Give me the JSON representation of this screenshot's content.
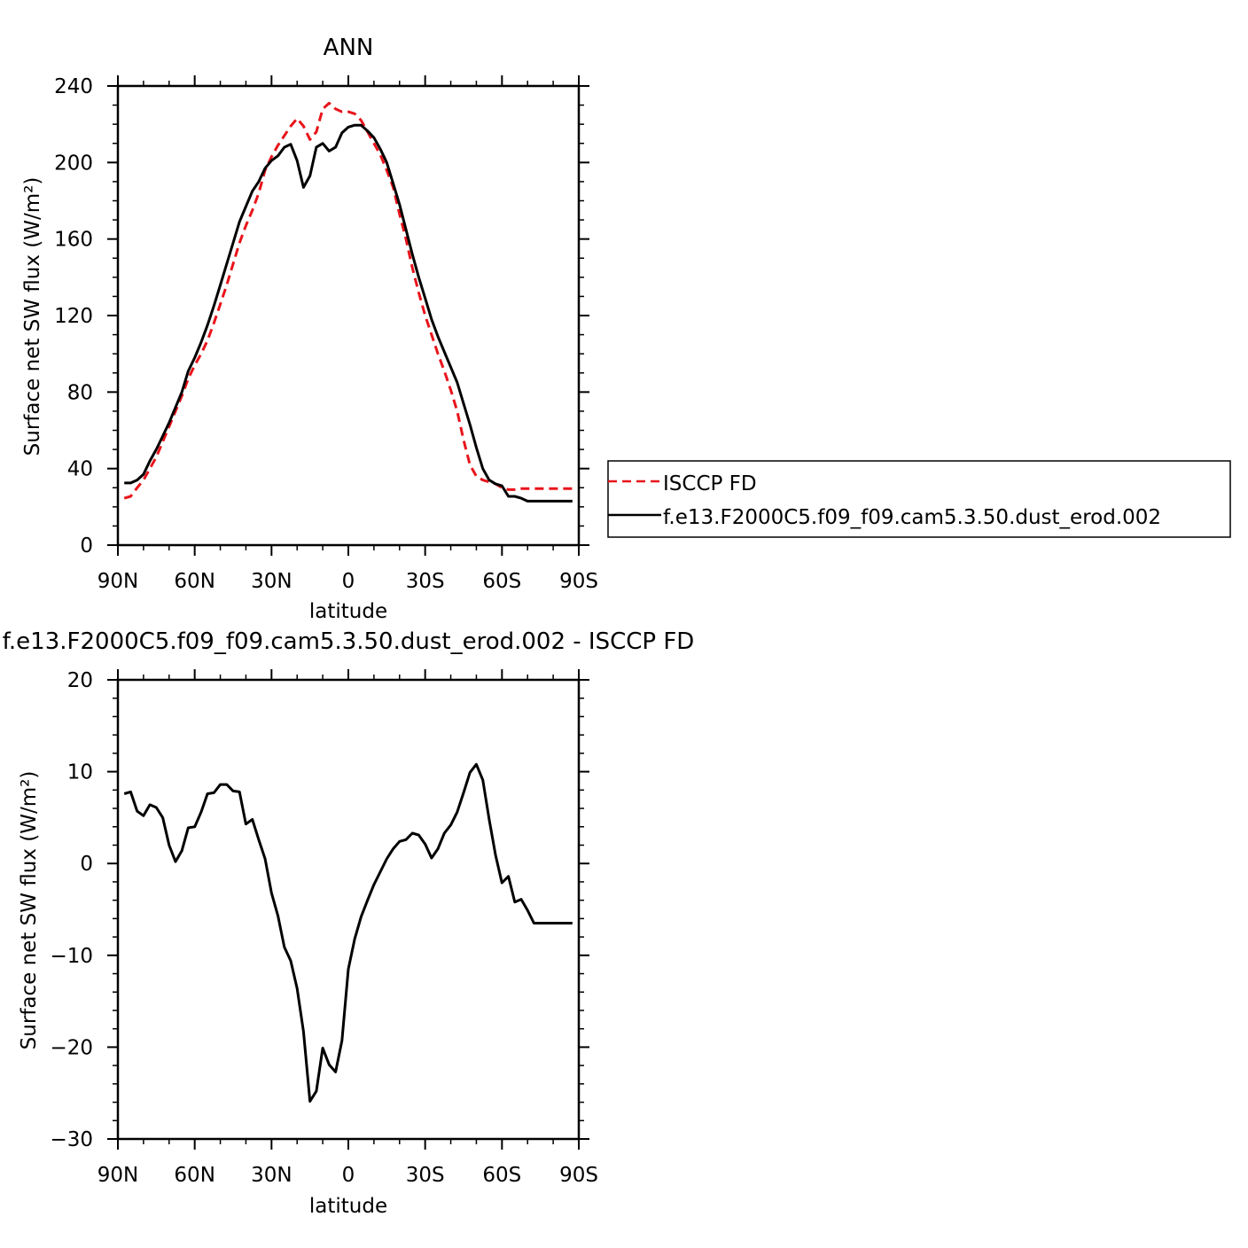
{
  "chart_data": [
    {
      "type": "line",
      "title": "ANN",
      "xlabel": "latitude",
      "ylabel": "Surface net SW flux (W/m²)",
      "x_axis": "latitude",
      "xlim": [
        90,
        -90
      ],
      "ylim": [
        0,
        240
      ],
      "xticks": [
        {
          "value": 90,
          "label": "90N"
        },
        {
          "value": 60,
          "label": "60N"
        },
        {
          "value": 30,
          "label": "30N"
        },
        {
          "value": 0,
          "label": "0"
        },
        {
          "value": -30,
          "label": "30S"
        },
        {
          "value": -60,
          "label": "60S"
        },
        {
          "value": -90,
          "label": "90S"
        }
      ],
      "yticks": [
        {
          "value": 0,
          "label": "0"
        },
        {
          "value": 40,
          "label": "40"
        },
        {
          "value": 80,
          "label": "80"
        },
        {
          "value": 120,
          "label": "120"
        },
        {
          "value": 160,
          "label": "160"
        },
        {
          "value": 200,
          "label": "200"
        },
        {
          "value": 240,
          "label": "240"
        }
      ],
      "grid": false,
      "legend_position": "right",
      "series": [
        {
          "name": "ISCCP FD",
          "color": "#e8141b",
          "dash": "dashed",
          "x": [
            87.5,
            85,
            82.5,
            80,
            77.5,
            75,
            72.5,
            70,
            67.5,
            65,
            62.5,
            60,
            57.5,
            55,
            52.5,
            50,
            47.5,
            45,
            42.5,
            40,
            37.5,
            35,
            32.5,
            30,
            27.5,
            25,
            22.5,
            20,
            17.5,
            15,
            12.5,
            10,
            7.5,
            5,
            2.5,
            0,
            -2.5,
            -5,
            -7.5,
            -10,
            -12.5,
            -15,
            -17.5,
            -20,
            -22.5,
            -25,
            -27.5,
            -30,
            -32.5,
            -35,
            -37.5,
            -40,
            -42.5,
            -45,
            -47.5,
            -50,
            -52.5,
            -55,
            -57.5,
            -60,
            -62.5,
            -65,
            -67.5,
            -70,
            -72.5,
            -75,
            -77.5,
            -80,
            -82.5,
            -85,
            -87.5
          ],
          "y": [
            24.5,
            25.5,
            30,
            34,
            40,
            46,
            54,
            62,
            70,
            78,
            87,
            94,
            100,
            107,
            116,
            126,
            136,
            147,
            158,
            167,
            175,
            184,
            196,
            203,
            209,
            214,
            219,
            223,
            219,
            212,
            216,
            228,
            231,
            228,
            226.5,
            226.5,
            225.5,
            222,
            216,
            210,
            204,
            196,
            187,
            173,
            160,
            145,
            132,
            120,
            110,
            100,
            91,
            81,
            70,
            55,
            42,
            36,
            34,
            33,
            32,
            30,
            29,
            29,
            29.5,
            29.5,
            29.5,
            29.5,
            29.5,
            29.5,
            29.5,
            29.5,
            29.5
          ]
        },
        {
          "name": "f.e13.F2000C5.f09_f09.cam5.3.50.dust_erod.002",
          "color": "#000000",
          "dash": "solid",
          "x": [
            87.5,
            85,
            82.5,
            80,
            77.5,
            75,
            72.5,
            70,
            67.5,
            65,
            62.5,
            60,
            57.5,
            55,
            52.5,
            50,
            47.5,
            45,
            42.5,
            40,
            37.5,
            35,
            32.5,
            30,
            27.5,
            25,
            22.5,
            20,
            17.5,
            15,
            12.5,
            10,
            7.5,
            5,
            2.5,
            0,
            -2.5,
            -5,
            -7.5,
            -10,
            -12.5,
            -15,
            -17.5,
            -20,
            -22.5,
            -25,
            -27.5,
            -30,
            -32.5,
            -35,
            -37.5,
            -40,
            -42.5,
            -45,
            -47.5,
            -50,
            -52.5,
            -55,
            -57.5,
            -60,
            -62.5,
            -65,
            -67.5,
            -70,
            -72.5,
            -75,
            -77.5,
            -80,
            -82.5,
            -85,
            -87.5
          ],
          "y": [
            32.5,
            32.5,
            34,
            37,
            44,
            50,
            57,
            64,
            72,
            80,
            91,
            98,
            106,
            115,
            125,
            136,
            147,
            158,
            169,
            177,
            185,
            190,
            197,
            201,
            203.5,
            208,
            209.5,
            201,
            187,
            193,
            208,
            210,
            206,
            208,
            215.5,
            218.5,
            219.5,
            219.5,
            216.5,
            213,
            207,
            200,
            189,
            178,
            165,
            152,
            140,
            129,
            118,
            109,
            101,
            93,
            85,
            74,
            63,
            51,
            40,
            34,
            32,
            31,
            25.5,
            25.5,
            24.5,
            23,
            23,
            23,
            23,
            23,
            23,
            23,
            23
          ]
        }
      ]
    },
    {
      "type": "line",
      "title": "f.e13.F2000C5.f09_f09.cam5.3.50.dust_erod.002 - ISCCP FD",
      "xlabel": "latitude",
      "ylabel": "Surface net SW flux (W/m²)",
      "x_axis": "latitude",
      "xlim": [
        90,
        -90
      ],
      "ylim": [
        -30,
        20
      ],
      "xticks": [
        {
          "value": 90,
          "label": "90N"
        },
        {
          "value": 60,
          "label": "60N"
        },
        {
          "value": 30,
          "label": "30N"
        },
        {
          "value": 0,
          "label": "0"
        },
        {
          "value": -30,
          "label": "30S"
        },
        {
          "value": -60,
          "label": "60S"
        },
        {
          "value": -90,
          "label": "90S"
        }
      ],
      "yticks": [
        {
          "value": -30,
          "label": "−30"
        },
        {
          "value": -20,
          "label": "−20"
        },
        {
          "value": -10,
          "label": "−10"
        },
        {
          "value": 0,
          "label": "0"
        },
        {
          "value": 10,
          "label": "10"
        },
        {
          "value": 20,
          "label": "20"
        }
      ],
      "grid": false,
      "series": [
        {
          "color": "#000000",
          "dash": "solid",
          "x": [
            87.5,
            85,
            82.5,
            80,
            77.5,
            75,
            72.5,
            70,
            67.5,
            65,
            62.5,
            60,
            57.5,
            55,
            52.5,
            50,
            47.5,
            45,
            42.5,
            40,
            37.5,
            35,
            32.5,
            30,
            27.5,
            25,
            22.5,
            20,
            17.5,
            15,
            12.5,
            10,
            7.5,
            5,
            2.5,
            0,
            -2.5,
            -5,
            -7.5,
            -10,
            -12.5,
            -15,
            -17.5,
            -20,
            -22.5,
            -25,
            -27.5,
            -30,
            -32.5,
            -35,
            -37.5,
            -40,
            -42.5,
            -45,
            -47.5,
            -50,
            -52.5,
            -55,
            -57.5,
            -60,
            -62.5,
            -65,
            -67.5,
            -70,
            -72.5,
            -75,
            -77.5,
            -80,
            -82.5,
            -85,
            -87.5
          ],
          "y": [
            7.6,
            7.8,
            5.7,
            5.2,
            6.4,
            6.1,
            5.0,
            2.0,
            0.2,
            1.4,
            3.9,
            4.0,
            5.6,
            7.6,
            7.7,
            8.6,
            8.6,
            7.9,
            7.8,
            4.3,
            4.8,
            2.6,
            0.5,
            -3.2,
            -5.7,
            -9.1,
            -10.6,
            -13.6,
            -18.3,
            -25.9,
            -24.8,
            -20.1,
            -21.9,
            -22.7,
            -19.3,
            -11.5,
            -8.2,
            -5.8,
            -4.0,
            -2.3,
            -0.9,
            0.5,
            1.6,
            2.4,
            2.6,
            3.3,
            3.1,
            2.1,
            0.6,
            1.6,
            3.3,
            4.2,
            5.6,
            7.7,
            9.9,
            10.8,
            9.1,
            4.8,
            0.9,
            -2.1,
            -1.4,
            -4.2,
            -3.9,
            -5.1,
            -6.5,
            -6.5,
            -6.5,
            -6.5,
            -6.5,
            -6.5,
            -6.5
          ]
        }
      ]
    }
  ]
}
